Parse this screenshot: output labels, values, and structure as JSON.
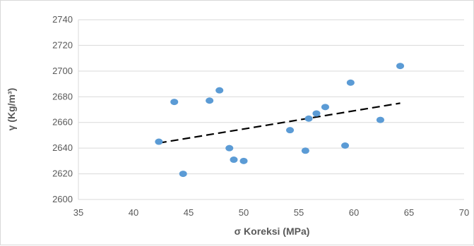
{
  "chart_data": {
    "type": "scatter",
    "title": "",
    "xlabel": "σ Koreksi (MPa)",
    "ylabel": "γ (Kg/m³)",
    "xlim": [
      35,
      70
    ],
    "ylim": [
      2600,
      2740
    ],
    "x_ticks": [
      35,
      40,
      45,
      50,
      55,
      60,
      65,
      70
    ],
    "y_ticks": [
      2600,
      2620,
      2640,
      2660,
      2680,
      2700,
      2720,
      2740
    ],
    "grid": "horizontal",
    "legend": "none",
    "colors": {
      "points": "#5b9bd5",
      "trendline": "#000000",
      "grid": "#d9d9d9"
    },
    "series": [
      {
        "points": [
          [
            42.3,
            2645
          ],
          [
            43.7,
            2676
          ],
          [
            44.5,
            2620
          ],
          [
            46.9,
            2677
          ],
          [
            47.8,
            2685
          ],
          [
            48.7,
            2640
          ],
          [
            49.1,
            2631
          ],
          [
            50.0,
            2630
          ],
          [
            54.2,
            2654
          ],
          [
            55.6,
            2638
          ],
          [
            55.9,
            2663
          ],
          [
            56.6,
            2667
          ],
          [
            57.4,
            2672
          ],
          [
            59.2,
            2642
          ],
          [
            59.7,
            2691
          ],
          [
            62.4,
            2662
          ],
          [
            64.2,
            2704
          ]
        ]
      }
    ],
    "trendline": {
      "type": "linear",
      "style": "dashed",
      "x": [
        42.3,
        64.2
      ],
      "y": [
        2644,
        2675
      ]
    }
  }
}
